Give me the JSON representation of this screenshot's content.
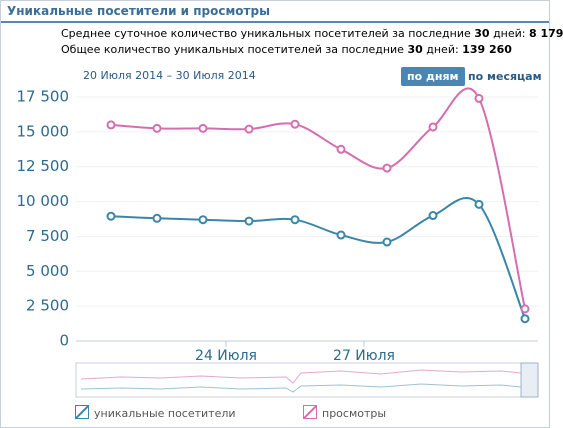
{
  "header": {
    "title": "Уникальные посетители и просмотры",
    "stats": [
      [
        "Среднее суточное количество уникальных посетителей за последние",
        "30",
        "дней:",
        "8 179"
      ],
      [
        "Общее количество уникальных посетителей за последние",
        "30",
        "дней:",
        "139 260"
      ]
    ],
    "range": "20 Июля 2014 – 30 Июля 2014",
    "buttons": [
      "по дням",
      "по месяцам"
    ]
  },
  "chart_data": {
    "type": "line",
    "categories": [
      null,
      null,
      null,
      null,
      null,
      null,
      null,
      null,
      null,
      null
    ],
    "xticks": [
      {
        "value": 3,
        "label": "24 Июля"
      },
      {
        "value": 6,
        "label": "27 Июля"
      }
    ],
    "series": [
      {
        "name": "уникальные посетители",
        "color": "#3a86a8",
        "values": [
          8950,
          8800,
          8700,
          8600,
          8700,
          7600,
          7100,
          9000,
          9800,
          1600
        ]
      },
      {
        "name": "просмотры",
        "color": "#d36eb0",
        "values": [
          15500,
          15250,
          15250,
          15200,
          15550,
          13750,
          12400,
          15350,
          17400,
          2300
        ]
      }
    ],
    "ylim": [
      0,
      17500
    ],
    "yticks": [
      0,
      {
        "value": 2500,
        "label": "2 500"
      },
      {
        "value": 5000,
        "label": "5 000"
      },
      {
        "value": 7500,
        "label": "7 500"
      },
      {
        "value": 10000,
        "label": "10 000"
      },
      {
        "value": 12500,
        "label": "12 500"
      },
      {
        "value": 15000,
        "label": "15 000"
      },
      {
        "value": 17500,
        "label": "17 500"
      }
    ],
    "grid": true
  }
}
